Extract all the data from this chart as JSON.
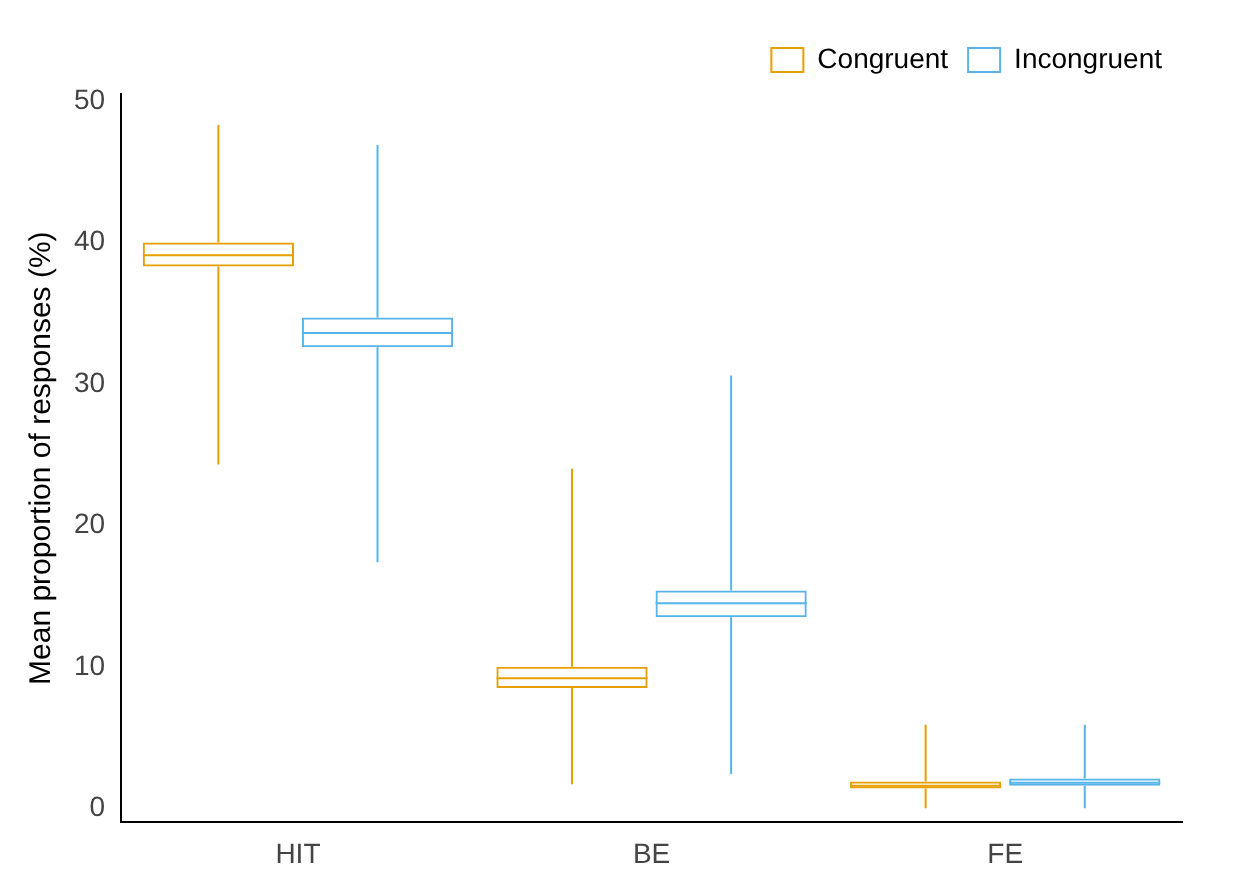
{
  "chart_data": {
    "type": "box",
    "ylabel": "Mean proportion of responses (%)",
    "categories": [
      "HIT",
      "BE",
      "FE"
    ],
    "ylim": [
      -1,
      50.5
    ],
    "yticks": [
      0,
      10,
      20,
      30,
      40,
      50
    ],
    "grid": false,
    "legend": "top right",
    "series": [
      {
        "name": "Congruent",
        "color": "#e69f00",
        "boxes": [
          {
            "low": 24.3,
            "q1": 38.3,
            "median": 39.1,
            "q3": 40.0,
            "high": 48.3
          },
          {
            "low": 1.7,
            "q1": 8.5,
            "median": 9.2,
            "q3": 10.0,
            "high": 24.0
          },
          {
            "low": 0,
            "q1": 1.4,
            "median": 1.6,
            "q3": 1.9,
            "high": 5.9
          }
        ]
      },
      {
        "name": "Incongruent",
        "color": "#56b4e9",
        "boxes": [
          {
            "low": 17.4,
            "q1": 32.6,
            "median": 33.6,
            "q3": 34.7,
            "high": 46.9
          },
          {
            "low": 2.4,
            "q1": 13.5,
            "median": 14.5,
            "q3": 15.4,
            "high": 30.6
          },
          {
            "low": 0,
            "q1": 1.6,
            "median": 1.8,
            "q3": 2.1,
            "high": 5.9
          }
        ]
      }
    ]
  }
}
